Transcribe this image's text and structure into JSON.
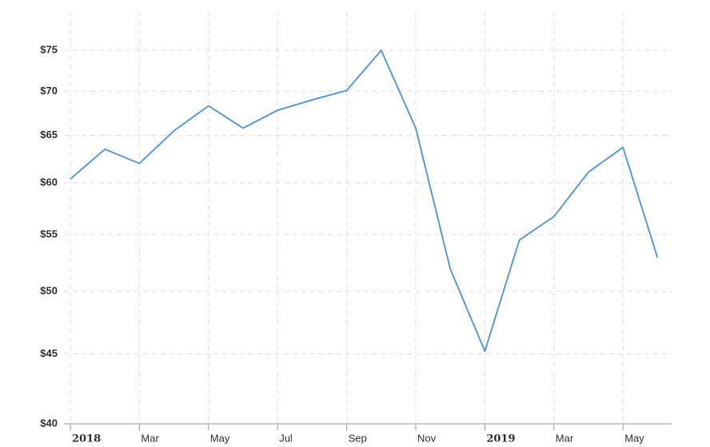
{
  "chart_data": {
    "type": "line",
    "log_scale": true,
    "grid": true,
    "x": [
      "2018-01",
      "2018-02",
      "2018-03",
      "2018-04",
      "2018-05",
      "2018-06",
      "2018-07",
      "2018-08",
      "2018-09",
      "2018-10",
      "2018-11",
      "2018-12",
      "2019-01",
      "2019-02",
      "2019-03",
      "2019-04",
      "2019-05",
      "2019-06"
    ],
    "series": [
      {
        "color": "#5b9bd5",
        "values": [
          60.4,
          63.5,
          62.0,
          65.5,
          68.3,
          65.8,
          67.8,
          69.0,
          70.1,
          75.0,
          65.8,
          51.9,
          45.2,
          54.5,
          56.7,
          61.1,
          63.7,
          52.9
        ]
      }
    ],
    "ylim": [
      40,
      80
    ],
    "yticks": [
      {
        "value": 40,
        "label": "$40"
      },
      {
        "value": 45,
        "label": "$45"
      },
      {
        "value": 50,
        "label": "$50"
      },
      {
        "value": 55,
        "label": "$55"
      },
      {
        "value": 60,
        "label": "$60"
      },
      {
        "value": 65,
        "label": "$65"
      },
      {
        "value": 70,
        "label": "$70"
      },
      {
        "value": 75,
        "label": "$75"
      }
    ],
    "xticks": [
      {
        "value": "2018-01",
        "label": "2018"
      },
      {
        "value": "2018-03",
        "label": "Mar"
      },
      {
        "value": "2018-05",
        "label": "May"
      },
      {
        "value": "2018-07",
        "label": "Jul"
      },
      {
        "value": "2018-09",
        "label": "Sep"
      },
      {
        "value": "2018-11",
        "label": "Nov"
      },
      {
        "value": "2019-01",
        "label": "2019"
      },
      {
        "value": "2019-03",
        "label": "Mar"
      },
      {
        "value": "2019-05",
        "label": "May"
      }
    ]
  }
}
